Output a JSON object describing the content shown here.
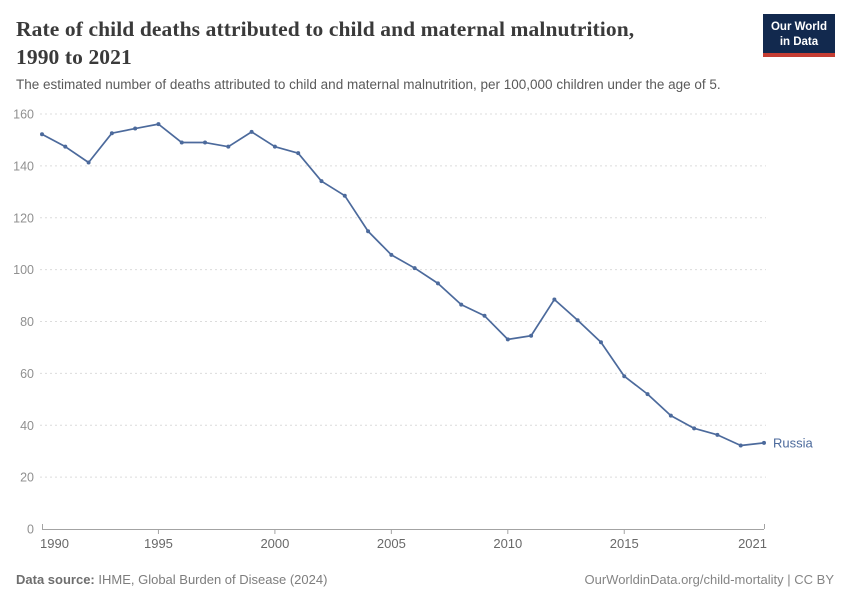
{
  "header": {
    "title_lines": [
      "Rate of child deaths attributed to child and maternal malnutrition,",
      "1990 to 2021"
    ],
    "subtitle": "The estimated number of deaths attributed to child and maternal malnutrition, per 100,000 children under the age of 5.",
    "logo": {
      "line1": "Our World",
      "line2": "in Data"
    }
  },
  "footer": {
    "source_label": "Data source:",
    "source_text": " IHME, Global Burden of Disease (2024)",
    "link_text": "OurWorldinData.org/child-mortality | CC BY"
  },
  "chart_data": {
    "type": "line",
    "title": "Rate of child deaths attributed to child and maternal malnutrition, 1990 to 2021",
    "subtitle": "The estimated number of deaths attributed to child and maternal malnutrition, per 100,000 children under the age of 5.",
    "xlabel": "",
    "ylabel": "",
    "xlim": [
      1990,
      2021
    ],
    "ylim": [
      0,
      160
    ],
    "x_ticks": [
      1990,
      1995,
      2000,
      2005,
      2010,
      2015,
      2021
    ],
    "y_ticks": [
      0,
      20,
      40,
      60,
      80,
      100,
      120,
      140,
      160
    ],
    "grid": "horizontal-dashed",
    "legend_position": "end-of-line-label",
    "series": [
      {
        "name": "Russia",
        "x": [
          1990,
          1991,
          1992,
          1993,
          1994,
          1995,
          1996,
          1997,
          1998,
          1999,
          2000,
          2001,
          2002,
          2003,
          2004,
          2005,
          2006,
          2007,
          2008,
          2009,
          2010,
          2011,
          2012,
          2013,
          2014,
          2015,
          2016,
          2017,
          2018,
          2019,
          2020,
          2021
        ],
        "values": [
          152.2,
          147.4,
          141.3,
          152.6,
          154.4,
          156.1,
          149.0,
          149.0,
          147.4,
          153.1,
          147.4,
          144.9,
          134.1,
          128.5,
          114.8,
          105.7,
          100.6,
          94.7,
          86.5,
          82.2,
          73.1,
          74.5,
          88.5,
          80.5,
          72.0,
          58.9,
          52.0,
          43.7,
          38.8,
          36.3,
          32.2,
          33.2
        ]
      }
    ]
  },
  "colors": {
    "line": "#4c6a9c",
    "grid": "#dcdcdc",
    "axis": "#a3a3a3",
    "y_tick_label": "#909090",
    "x_tick_label": "#696969",
    "title": "#3a3a3a",
    "subtitle": "#5a5a5a",
    "footer": "#7d7d7d",
    "logo_bg": "#12294e",
    "logo_stripe": "#c53d33"
  }
}
